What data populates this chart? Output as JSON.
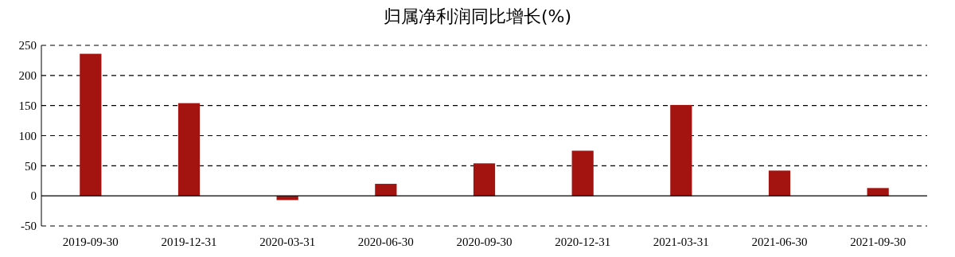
{
  "chart_data": {
    "type": "bar",
    "title": "归属净利润同比增长(%)",
    "categories": [
      "2019-09-30",
      "2019-12-31",
      "2020-03-31",
      "2020-06-30",
      "2020-09-30",
      "2020-12-31",
      "2021-03-31",
      "2021-06-30",
      "2021-09-30"
    ],
    "values": [
      236,
      154,
      -7,
      20,
      54,
      75,
      151,
      42,
      13
    ],
    "color": "#a31410",
    "ylim": [
      -50,
      250
    ],
    "yticks": [
      -50,
      0,
      50,
      100,
      150,
      200,
      250
    ],
    "grid": "y"
  }
}
